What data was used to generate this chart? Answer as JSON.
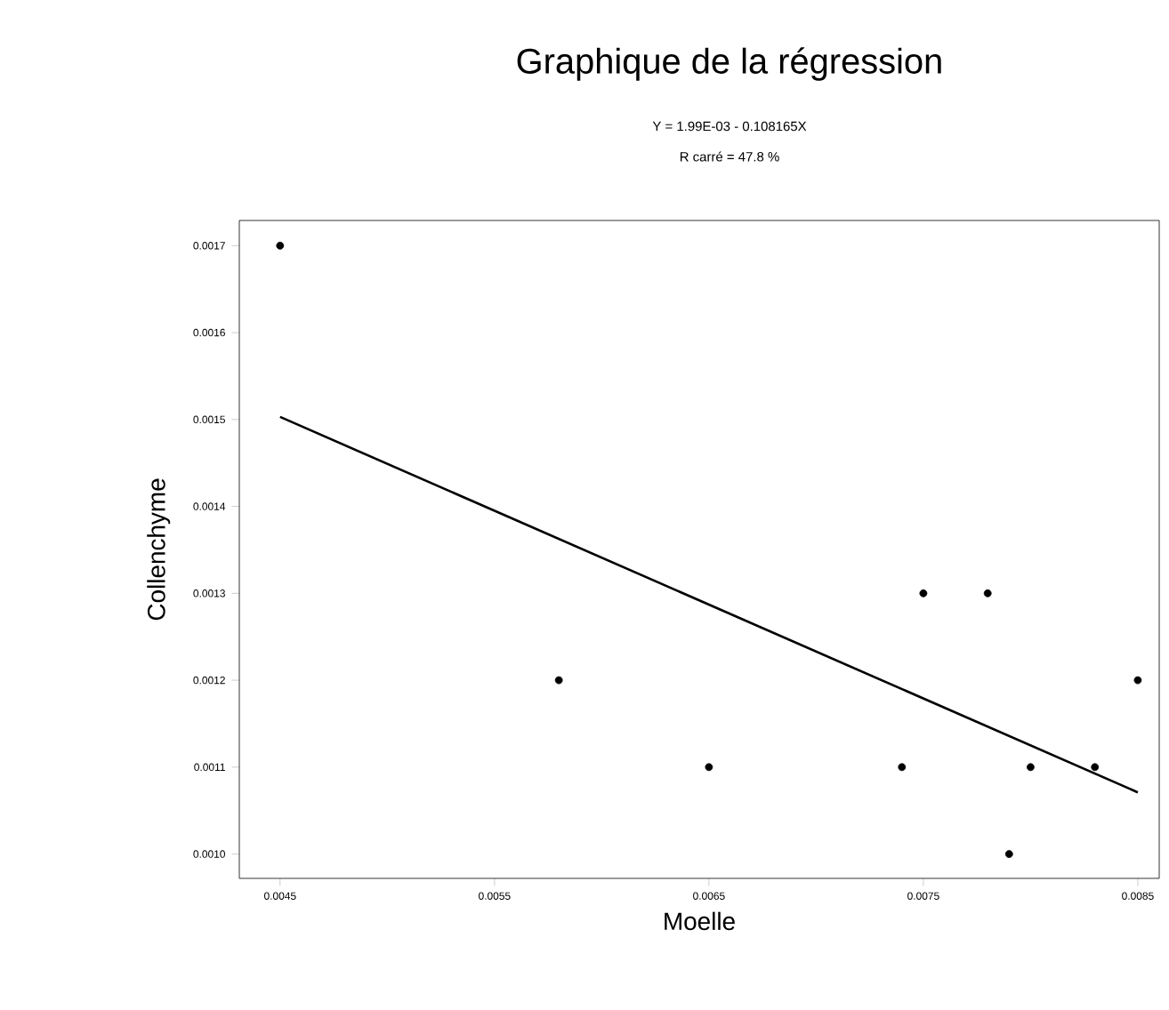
{
  "chart_data": {
    "type": "scatter",
    "title": "Graphique de la régression",
    "subtitle": "Y = 1.99E-03 - 0.108165X",
    "annotations": [
      "R carré = 47.8 %"
    ],
    "xlabel": "Moelle",
    "ylabel": "Collenchyme",
    "xlim": [
      0.00431,
      0.0086
    ],
    "ylim": [
      0.000972,
      0.001729
    ],
    "xticks": [
      0.0045,
      0.0055,
      0.0065,
      0.0075,
      0.0085
    ],
    "yticks": [
      {
        "value": 0.001,
        "label": "0.0010"
      },
      0.0011,
      0.0012,
      0.0013,
      0.0014,
      0.0015,
      0.0016,
      0.0017
    ],
    "grid": false,
    "marker": "circle",
    "series": [
      {
        "color": "#000000",
        "x": [
          0.0045,
          0.0058,
          0.0065,
          0.0074,
          0.0075,
          0.0078,
          0.0079,
          0.008,
          0.0083,
          0.0085
        ],
        "values": [
          0.0017,
          0.0012,
          0.0011,
          0.0011,
          0.0013,
          0.0013,
          0.001,
          0.0011,
          0.0011,
          0.0012
        ]
      },
      {
        "type": "line",
        "color": "#000000",
        "marker": "none",
        "line_style": "solid",
        "x": [
          0.0045,
          0.0085
        ],
        "values": [
          0.001503,
          0.001071
        ]
      }
    ]
  }
}
